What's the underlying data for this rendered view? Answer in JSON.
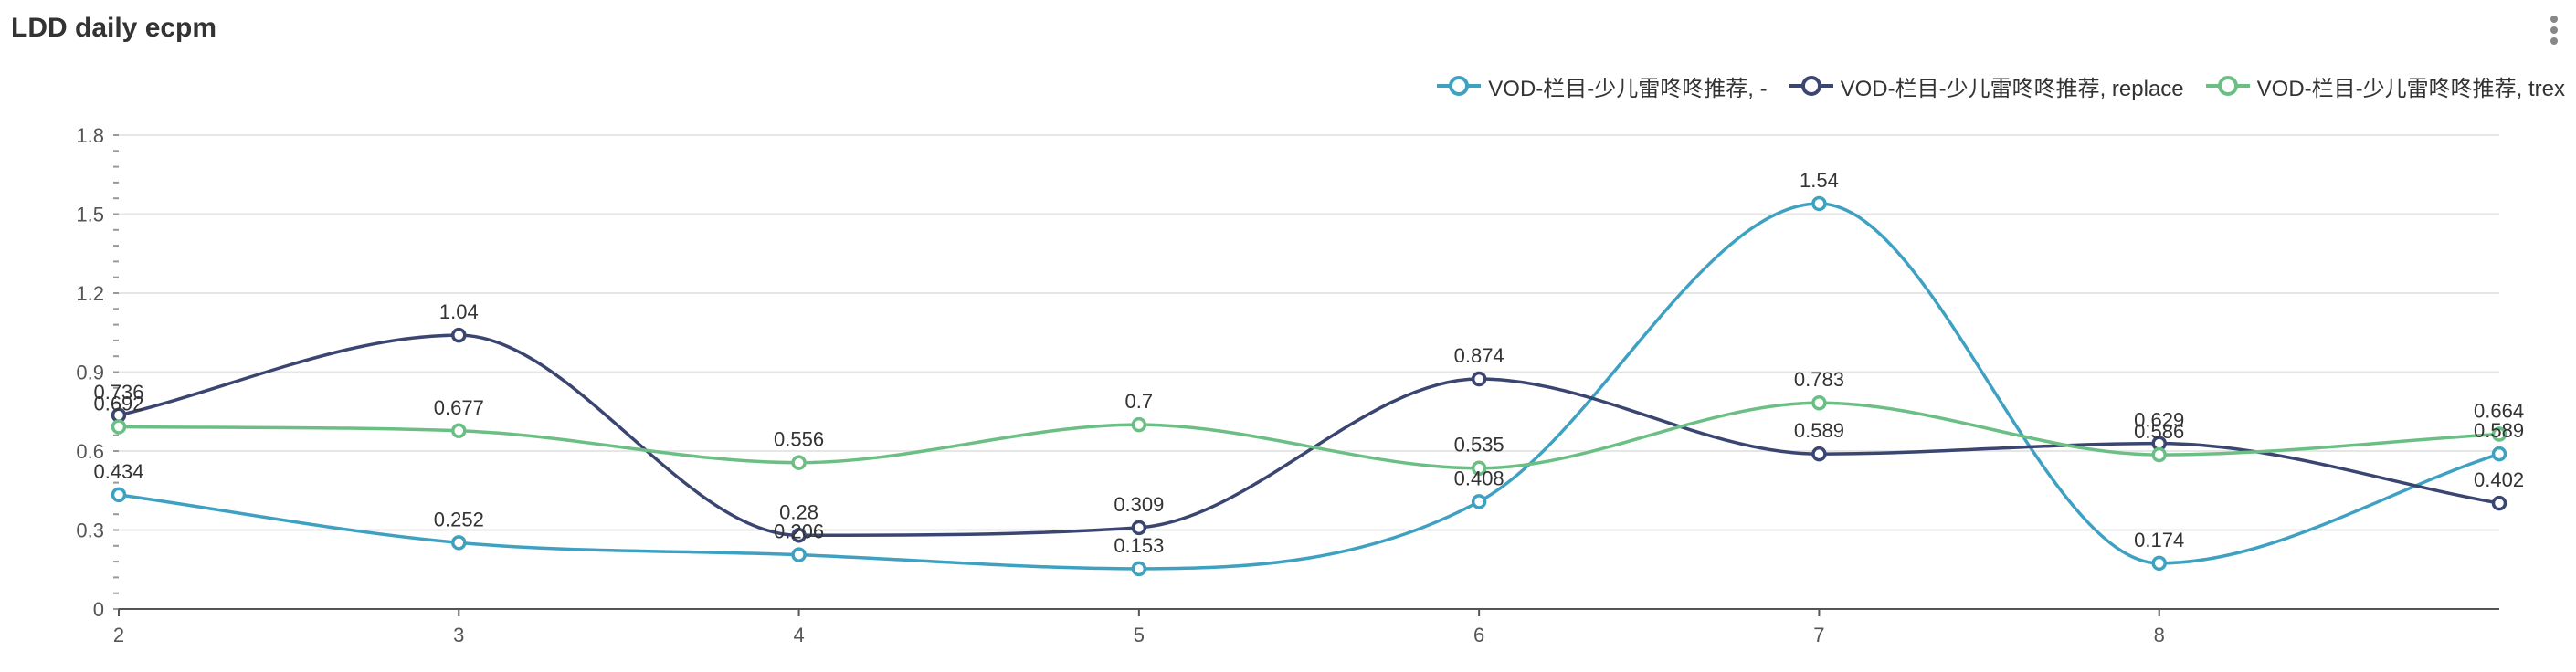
{
  "panel": {
    "title": "LDD daily ecpm",
    "menu_icon": "vertical-ellipsis-icon"
  },
  "chart_data": {
    "type": "line",
    "title": "LDD daily ecpm",
    "xlabel": "",
    "ylabel": "",
    "x": [
      2,
      3,
      4,
      5,
      6,
      7,
      8,
      9
    ],
    "x_tick_labels": [
      "2",
      "3",
      "4",
      "5",
      "6",
      "7",
      "8"
    ],
    "ylim": [
      0,
      1.8
    ],
    "y_ticks": [
      "0",
      "0.3",
      "0.6",
      "0.9",
      "1.2",
      "1.5",
      "1.8"
    ],
    "grid": true,
    "legend_position": "top-right",
    "smooth": true,
    "series": [
      {
        "name": "VOD-栏目-少儿雷咚咚推荐, -",
        "color": "#3fa1c1",
        "values": [
          0.434,
          0.252,
          0.206,
          0.153,
          0.408,
          1.54,
          0.174,
          0.589
        ]
      },
      {
        "name": "VOD-栏目-少儿雷咚咚推荐, replace",
        "color": "#3a4671",
        "values": [
          0.736,
          1.04,
          0.28,
          0.309,
          0.874,
          0.589,
          0.629,
          0.402
        ]
      },
      {
        "name": "VOD-栏目-少儿雷咚咚推荐, trex",
        "color": "#6cbf84",
        "values": [
          0.692,
          0.677,
          0.556,
          0.7,
          0.535,
          0.783,
          0.586,
          0.664
        ]
      }
    ]
  }
}
